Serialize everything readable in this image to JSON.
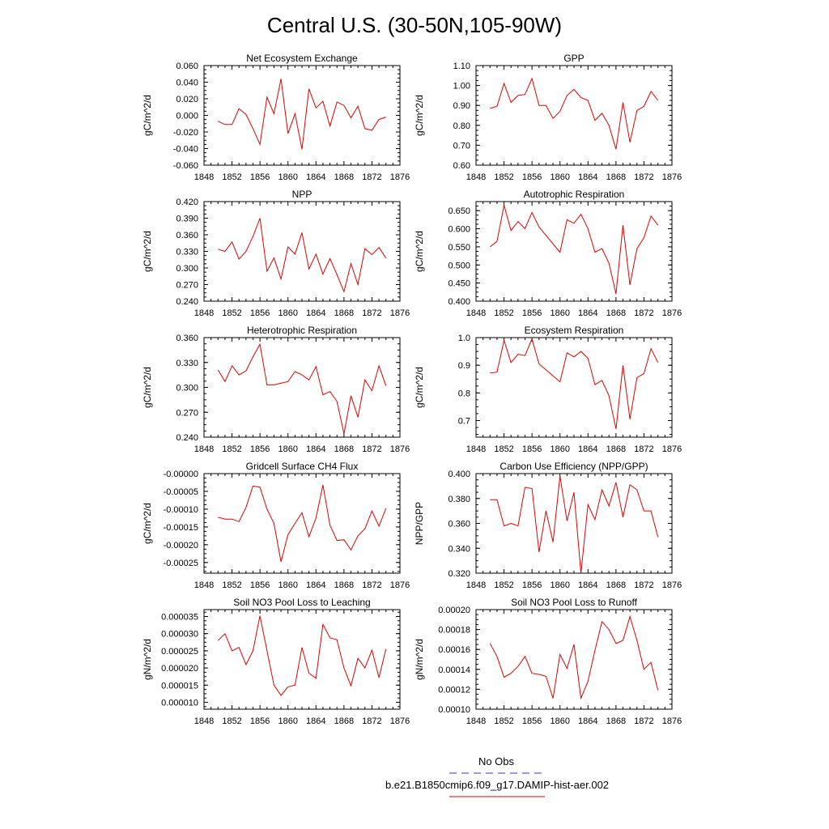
{
  "title": "Central U.S. (30-50N,105-90W)",
  "legend": {
    "obs_label": "No Obs",
    "obs_color": "#3333cc",
    "model_label": "b.e21.B1850cmip6.f09_g17.DAMIP-hist-aer.002",
    "model_color": "#e00000"
  },
  "chart_data": [
    {
      "type": "line",
      "title": "Net Ecosystem Exchange",
      "ylabel": "gC/m^2/d",
      "xlim": [
        1848,
        1876
      ],
      "x_ticks": [
        "1848",
        "1852",
        "1856",
        "1860",
        "1864",
        "1868",
        "1872",
        "1876"
      ],
      "ylim": [
        -0.06,
        0.06
      ],
      "y_ticks": [
        "-0.060",
        "-0.040",
        "-0.020",
        "0.000",
        "0.020",
        "0.040",
        "0.060"
      ],
      "x": [
        1850,
        1851,
        1852,
        1853,
        1854,
        1855,
        1856,
        1857,
        1858,
        1859,
        1860,
        1861,
        1862,
        1863,
        1864,
        1865,
        1866,
        1867,
        1868,
        1869,
        1870,
        1871,
        1872,
        1873,
        1874
      ],
      "series": [
        {
          "values": [
            -0.007,
            -0.011,
            -0.011,
            0.008,
            0.001,
            -0.016,
            -0.035,
            0.022,
            0.002,
            0.044,
            -0.022,
            0.002,
            -0.041,
            0.032,
            0.009,
            0.017,
            -0.013,
            0.016,
            0.012,
            -0.003,
            0.011,
            -0.016,
            -0.018,
            -0.005,
            -0.002
          ],
          "color": "#e00000"
        }
      ]
    },
    {
      "type": "line",
      "title": "GPP",
      "ylabel": "gC/m^2/d",
      "xlim": [
        1848,
        1876
      ],
      "x_ticks": [
        "1848",
        "1852",
        "1856",
        "1860",
        "1864",
        "1868",
        "1872",
        "1876"
      ],
      "ylim": [
        0.6,
        1.1
      ],
      "y_ticks": [
        "0.60",
        "0.70",
        "0.80",
        "0.90",
        "1.00",
        "1.10"
      ],
      "x": [
        1850,
        1851,
        1852,
        1853,
        1854,
        1855,
        1856,
        1857,
        1858,
        1859,
        1860,
        1861,
        1862,
        1863,
        1864,
        1865,
        1866,
        1867,
        1868,
        1869,
        1870,
        1871,
        1872,
        1873,
        1874
      ],
      "series": [
        {
          "values": [
            0.885,
            0.895,
            1.01,
            0.915,
            0.95,
            0.955,
            1.035,
            0.9,
            0.9,
            0.835,
            0.87,
            0.95,
            0.98,
            0.94,
            0.925,
            0.825,
            0.86,
            0.8,
            0.68,
            0.915,
            0.715,
            0.875,
            0.895,
            0.97,
            0.925
          ],
          "color": "#e00000"
        }
      ]
    },
    {
      "type": "line",
      "title": "NPP",
      "ylabel": "gC/m^2/d",
      "xlim": [
        1848,
        1876
      ],
      "x_ticks": [
        "1848",
        "1852",
        "1856",
        "1860",
        "1864",
        "1868",
        "1872",
        "1876"
      ],
      "ylim": [
        0.24,
        0.42
      ],
      "y_ticks": [
        "0.240",
        "0.270",
        "0.300",
        "0.330",
        "0.360",
        "0.390",
        "0.420"
      ],
      "x": [
        1850,
        1851,
        1852,
        1853,
        1854,
        1855,
        1856,
        1857,
        1858,
        1859,
        1860,
        1861,
        1862,
        1863,
        1864,
        1865,
        1866,
        1867,
        1868,
        1869,
        1870,
        1871,
        1872,
        1873,
        1874
      ],
      "series": [
        {
          "values": [
            0.334,
            0.33,
            0.347,
            0.316,
            0.33,
            0.357,
            0.39,
            0.294,
            0.318,
            0.28,
            0.338,
            0.325,
            0.364,
            0.298,
            0.325,
            0.289,
            0.317,
            0.288,
            0.257,
            0.308,
            0.27,
            0.335,
            0.324,
            0.337,
            0.318
          ],
          "color": "#e00000"
        }
      ]
    },
    {
      "type": "line",
      "title": "Autotrophic Respiration",
      "ylabel": "gC/m^2/d",
      "xlim": [
        1848,
        1876
      ],
      "x_ticks": [
        "1848",
        "1852",
        "1856",
        "1860",
        "1864",
        "1868",
        "1872",
        "1876"
      ],
      "ylim": [
        0.4,
        0.675
      ],
      "y_ticks": [
        "0.400",
        "0.450",
        "0.500",
        "0.550",
        "0.600",
        "0.650"
      ],
      "x": [
        1850,
        1851,
        1852,
        1853,
        1854,
        1855,
        1856,
        1857,
        1860,
        1861,
        1862,
        1863,
        1864,
        1865,
        1866,
        1867,
        1868,
        1869,
        1870,
        1871,
        1872,
        1873,
        1874
      ],
      "series": [
        {
          "values": [
            0.55,
            0.565,
            0.665,
            0.595,
            0.62,
            0.6,
            0.645,
            0.605,
            0.535,
            0.625,
            0.615,
            0.64,
            0.6,
            0.535,
            0.545,
            0.505,
            0.42,
            0.61,
            0.445,
            0.545,
            0.575,
            0.635,
            0.61
          ],
          "color": "#e00000"
        }
      ]
    },
    {
      "type": "line",
      "title": "Heterotrophic Respiration",
      "ylabel": "gC/m^2/d",
      "xlim": [
        1848,
        1876
      ],
      "x_ticks": [
        "1848",
        "1852",
        "1856",
        "1860",
        "1864",
        "1868",
        "1872",
        "1876"
      ],
      "ylim": [
        0.24,
        0.36
      ],
      "y_ticks": [
        "0.240",
        "0.270",
        "0.300",
        "0.330",
        "0.360"
      ],
      "x": [
        1850,
        1851,
        1852,
        1853,
        1854,
        1855,
        1856,
        1857,
        1858,
        1859,
        1860,
        1861,
        1862,
        1863,
        1864,
        1865,
        1866,
        1867,
        1868,
        1869,
        1870,
        1871,
        1872,
        1873,
        1874
      ],
      "series": [
        {
          "values": [
            0.321,
            0.307,
            0.326,
            0.315,
            0.32,
            0.337,
            0.352,
            0.303,
            0.303,
            0.305,
            0.307,
            0.319,
            0.315,
            0.309,
            0.325,
            0.291,
            0.295,
            0.283,
            0.244,
            0.29,
            0.264,
            0.309,
            0.296,
            0.326,
            0.302
          ],
          "color": "#e00000"
        }
      ]
    },
    {
      "type": "line",
      "title": "Ecosystem Respiration",
      "ylabel": "gC/m^2/d",
      "xlim": [
        1848,
        1876
      ],
      "x_ticks": [
        "1848",
        "1852",
        "1856",
        "1860",
        "1864",
        "1868",
        "1872",
        "1876"
      ],
      "ylim": [
        0.64,
        1.0
      ],
      "y_ticks": [
        "0.7",
        "0.8",
        "0.9",
        "1.0"
      ],
      "x": [
        1850,
        1851,
        1852,
        1853,
        1854,
        1855,
        1856,
        1857,
        1860,
        1861,
        1862,
        1863,
        1864,
        1865,
        1866,
        1867,
        1868,
        1869,
        1870,
        1871,
        1872,
        1873,
        1874
      ],
      "series": [
        {
          "values": [
            0.872,
            0.875,
            0.99,
            0.91,
            0.94,
            0.935,
            0.995,
            0.905,
            0.84,
            0.945,
            0.93,
            0.95,
            0.925,
            0.83,
            0.845,
            0.79,
            0.67,
            0.9,
            0.705,
            0.855,
            0.87,
            0.96,
            0.91
          ],
          "color": "#e00000"
        }
      ]
    },
    {
      "type": "line",
      "title": "Gridcell Surface CH4 Flux",
      "ylabel": "gC/m^2/d",
      "xlim": [
        1848,
        1876
      ],
      "x_ticks": [
        "1848",
        "1852",
        "1856",
        "1860",
        "1864",
        "1868",
        "1872",
        "1876"
      ],
      "ylim": [
        -0.00028,
        0.0
      ],
      "y_ticks": [
        "-0.00025",
        "-0.00020",
        "-0.00015",
        "-0.00010",
        "-0.00005",
        "-0.00000"
      ],
      "x": [
        1850,
        1851,
        1852,
        1853,
        1854,
        1855,
        1856,
        1857,
        1858,
        1859,
        1860,
        1861,
        1862,
        1863,
        1864,
        1865,
        1866,
        1867,
        1868,
        1869,
        1870,
        1871,
        1872,
        1873,
        1874
      ],
      "series": [
        {
          "values": [
            -0.000123,
            -0.000128,
            -0.000128,
            -0.000135,
            -9.5e-05,
            -3.5e-05,
            -3.8e-05,
            -0.0001,
            -0.00014,
            -0.000248,
            -0.000172,
            -0.00014,
            -0.00011,
            -0.000178,
            -0.000125,
            -3.2e-05,
            -0.000145,
            -0.000188,
            -0.000186,
            -0.000215,
            -0.000175,
            -0.000155,
            -0.000105,
            -0.000148,
            -9.8e-05
          ],
          "color": "#e00000"
        }
      ]
    },
    {
      "type": "line",
      "title": "Carbon Use Efficiency (NPP/GPP)",
      "ylabel": "NPP/GPP",
      "xlim": [
        1848,
        1876
      ],
      "x_ticks": [
        "1848",
        "1852",
        "1856",
        "1860",
        "1864",
        "1868",
        "1872",
        "1876"
      ],
      "ylim": [
        0.32,
        0.4
      ],
      "y_ticks": [
        "0.320",
        "0.340",
        "0.360",
        "0.380",
        "0.400"
      ],
      "x": [
        1850,
        1851,
        1852,
        1853,
        1854,
        1855,
        1856,
        1857,
        1858,
        1859,
        1860,
        1861,
        1862,
        1863,
        1864,
        1865,
        1866,
        1867,
        1868,
        1869,
        1870,
        1871,
        1872,
        1873,
        1874
      ],
      "series": [
        {
          "values": [
            0.379,
            0.379,
            0.358,
            0.36,
            0.358,
            0.389,
            0.388,
            0.337,
            0.37,
            0.345,
            0.398,
            0.362,
            0.385,
            0.32,
            0.375,
            0.363,
            0.387,
            0.374,
            0.393,
            0.365,
            0.391,
            0.387,
            0.37,
            0.37,
            0.349
          ],
          "color": "#e00000"
        }
      ]
    },
    {
      "type": "line",
      "title": "Soil NO3 Pool Loss to Leaching",
      "ylabel": "gN/m^2/d",
      "xlim": [
        1848,
        1876
      ],
      "x_ticks": [
        "1848",
        "1852",
        "1856",
        "1860",
        "1864",
        "1868",
        "1872",
        "1876"
      ],
      "ylim": [
        8e-06,
        3.7e-05
      ],
      "y_ticks": [
        "0.000010",
        "0.000015",
        "0.000020",
        "0.000025",
        "0.000030",
        "0.000035"
      ],
      "x": [
        1850,
        1851,
        1852,
        1853,
        1854,
        1855,
        1856,
        1857,
        1858,
        1859,
        1860,
        1861,
        1862,
        1863,
        1864,
        1865,
        1866,
        1867,
        1868,
        1869,
        1870,
        1871,
        1872,
        1873,
        1874
      ],
      "series": [
        {
          "values": [
            2.8e-05,
            3e-05,
            2.5e-05,
            2.6e-05,
            2.1e-05,
            2.5e-05,
            3.52e-05,
            2.5e-05,
            1.5e-05,
            1.2e-05,
            1.45e-05,
            1.5e-05,
            2.6e-05,
            1.85e-05,
            1.7e-05,
            3.27e-05,
            2.88e-05,
            2.82e-05,
            2e-05,
            1.48e-05,
            2.28e-05,
            2e-05,
            2.52e-05,
            1.72e-05,
            2.55e-05
          ],
          "color": "#e00000"
        }
      ]
    },
    {
      "type": "line",
      "title": "Soil NO3 Pool Loss to Runoff",
      "ylabel": "gN/m^2/d",
      "xlim": [
        1848,
        1876
      ],
      "x_ticks": [
        "1848",
        "1852",
        "1856",
        "1860",
        "1864",
        "1868",
        "1872",
        "1876"
      ],
      "ylim": [
        0.0001,
        0.0002
      ],
      "y_ticks": [
        "0.00010",
        "0.00012",
        "0.00014",
        "0.00016",
        "0.00018",
        "0.00020"
      ],
      "x": [
        1850,
        1851,
        1852,
        1853,
        1854,
        1855,
        1856,
        1857,
        1858,
        1859,
        1860,
        1861,
        1862,
        1863,
        1864,
        1865,
        1866,
        1867,
        1868,
        1869,
        1870,
        1871,
        1872,
        1873,
        1874
      ],
      "series": [
        {
          "values": [
            0.000166,
            0.000153,
            0.000132,
            0.000136,
            0.000143,
            0.000153,
            0.000136,
            0.000135,
            0.000133,
            0.000111,
            0.000155,
            0.000141,
            0.000165,
            0.000111,
            0.000128,
            0.000159,
            0.000188,
            0.00018,
            0.000166,
            0.000169,
            0.000193,
            0.000169,
            0.00014,
            0.000147,
            0.000119
          ],
          "color": "#e00000"
        }
      ]
    }
  ]
}
